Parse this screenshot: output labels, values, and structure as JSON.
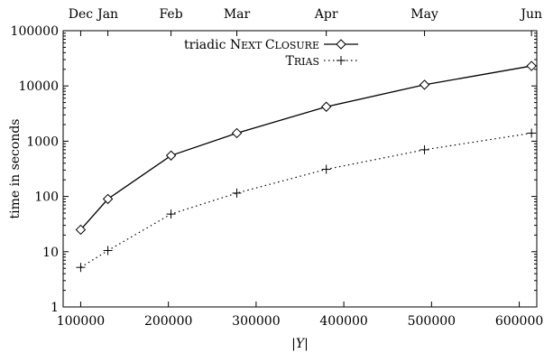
{
  "chart_data": {
    "type": "line",
    "xlabel": "|Y|",
    "ylabel": "time in seconds",
    "xlim": [
      80000,
      620000
    ],
    "ylim": [
      1,
      100000
    ],
    "yscale": "log",
    "grid": false,
    "legend_position": "top-left",
    "x_ticks": [
      "100000",
      "200000",
      "300000",
      "400000",
      "500000",
      "600000"
    ],
    "x_tick_values": [
      100000,
      200000,
      300000,
      400000,
      500000,
      600000
    ],
    "y_ticks": [
      "1",
      "10",
      "100",
      "1000",
      "10000",
      "100000"
    ],
    "y_tick_values": [
      1,
      10,
      100,
      1000,
      10000,
      100000
    ],
    "top_axis_ticks": [
      {
        "label": "Dec",
        "x": 100000
      },
      {
        "label": "Jan",
        "x": 131000
      },
      {
        "label": "Feb",
        "x": 203000
      },
      {
        "label": "Mar",
        "x": 278000
      },
      {
        "label": "Apr",
        "x": 380000
      },
      {
        "label": "May",
        "x": 492000
      },
      {
        "label": "Jun",
        "x": 614000
      }
    ],
    "series": [
      {
        "name": "triadic Next Closure",
        "name_prefix": "triadic ",
        "name_first_initial": "N",
        "name_first_rest": "EXT",
        "name_second_initial": "C",
        "name_second_rest": "LOSURE",
        "marker": "diamond",
        "line": "solid",
        "x": [
          100000,
          131000,
          203000,
          278000,
          380000,
          492000,
          614000
        ],
        "y": [
          25,
          90,
          550,
          1400,
          4200,
          10500,
          23000
        ]
      },
      {
        "name": "Trias",
        "name_initial": "T",
        "name_rest": "RIAS",
        "marker": "plus",
        "line": "dotted",
        "x": [
          100000,
          131000,
          203000,
          278000,
          380000,
          492000,
          614000
        ],
        "y": [
          5.2,
          10.5,
          48,
          115,
          310,
          700,
          1400
        ]
      }
    ]
  },
  "colors": {
    "line": "#000000",
    "background": "#ffffff"
  }
}
